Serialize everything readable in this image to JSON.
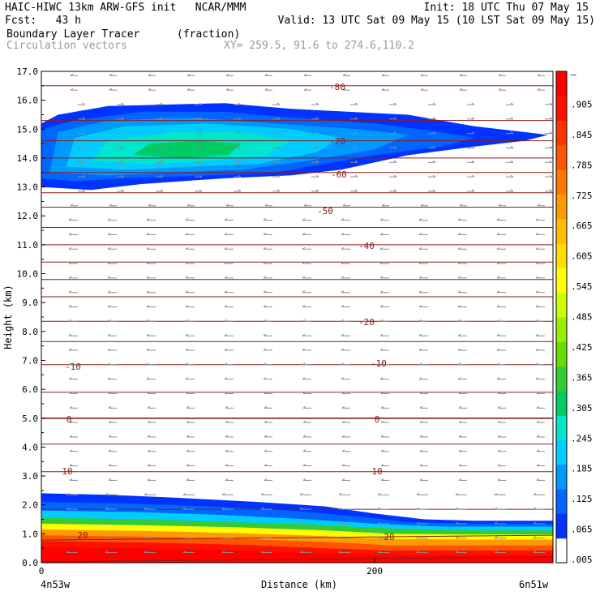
{
  "header": {
    "line1_left": "HAIC-HIWC 13km ARW-GFS init   NCAR/MMM",
    "line2_left": "Fcst:   43 h",
    "line1_right": "Init: 18 UTC Thu 07 May 15",
    "line2_right": "Valid: 13 UTC Sat 09 May 15 (10 LST Sat 09 May 15)",
    "field_name": "Boundary Layer Tracer",
    "field_units": "(fraction)",
    "overlay_name": "Circulation vectors",
    "xsec_coords": "XY= 259.5, 91.6 to 274.6,110.2"
  },
  "colors": {
    "contour_line": "#8b1a1a",
    "vector": "#8c8c8c",
    "scale": [
      "#ffffff",
      "#0033ff",
      "#0066ff",
      "#0099ff",
      "#00ccff",
      "#00e6cc",
      "#00cc66",
      "#33cc33",
      "#66dd00",
      "#99ee00",
      "#ccff00",
      "#ffff00",
      "#ffdd00",
      "#ffbb00",
      "#ff9900",
      "#ff7700",
      "#ff5500",
      "#ff3300",
      "#ff1100",
      "#ff0000"
    ]
  },
  "chart_data": {
    "type": "cross-section",
    "ylabel": "Height (km)",
    "xlabel": "Distance (km)",
    "ylim": [
      0,
      17
    ],
    "xlim": [
      0,
      307
    ],
    "x_ticks": [
      "0",
      "200"
    ],
    "x_tick_values": [
      0,
      200
    ],
    "x_left_label": "4n53w",
    "x_right_label": "6n51w",
    "y_ticks": [
      "0.0",
      "1.0",
      "2.0",
      "3.0",
      "4.0",
      "5.0",
      "6.0",
      "7.0",
      "8.0",
      "9.0",
      "10.0",
      "11.0",
      "12.0",
      "13.0",
      "14.0",
      "15.0",
      "16.0",
      "17.0"
    ],
    "colorbar_labels": [
      ".005",
      ".065",
      ".125",
      ".185",
      ".245",
      ".305",
      ".365",
      ".425",
      ".485",
      ".545",
      ".605",
      ".665",
      ".725",
      ".785",
      ".845",
      ".905",
      "–"
    ],
    "temperature_contour_labels": [
      "-80",
      "-70",
      "-60",
      "-50",
      "-40",
      "-20",
      "-10",
      "-10",
      "0",
      "0",
      "10",
      "10",
      "20",
      "20"
    ],
    "upper_tracer_layer": {
      "base_km": 12.9,
      "top_km": 15.9,
      "max_fraction": 0.25
    },
    "lower_tracer_layer": {
      "top_km_left": 2.4,
      "top_km_right": 1.4,
      "max_fraction": 1.0
    }
  }
}
